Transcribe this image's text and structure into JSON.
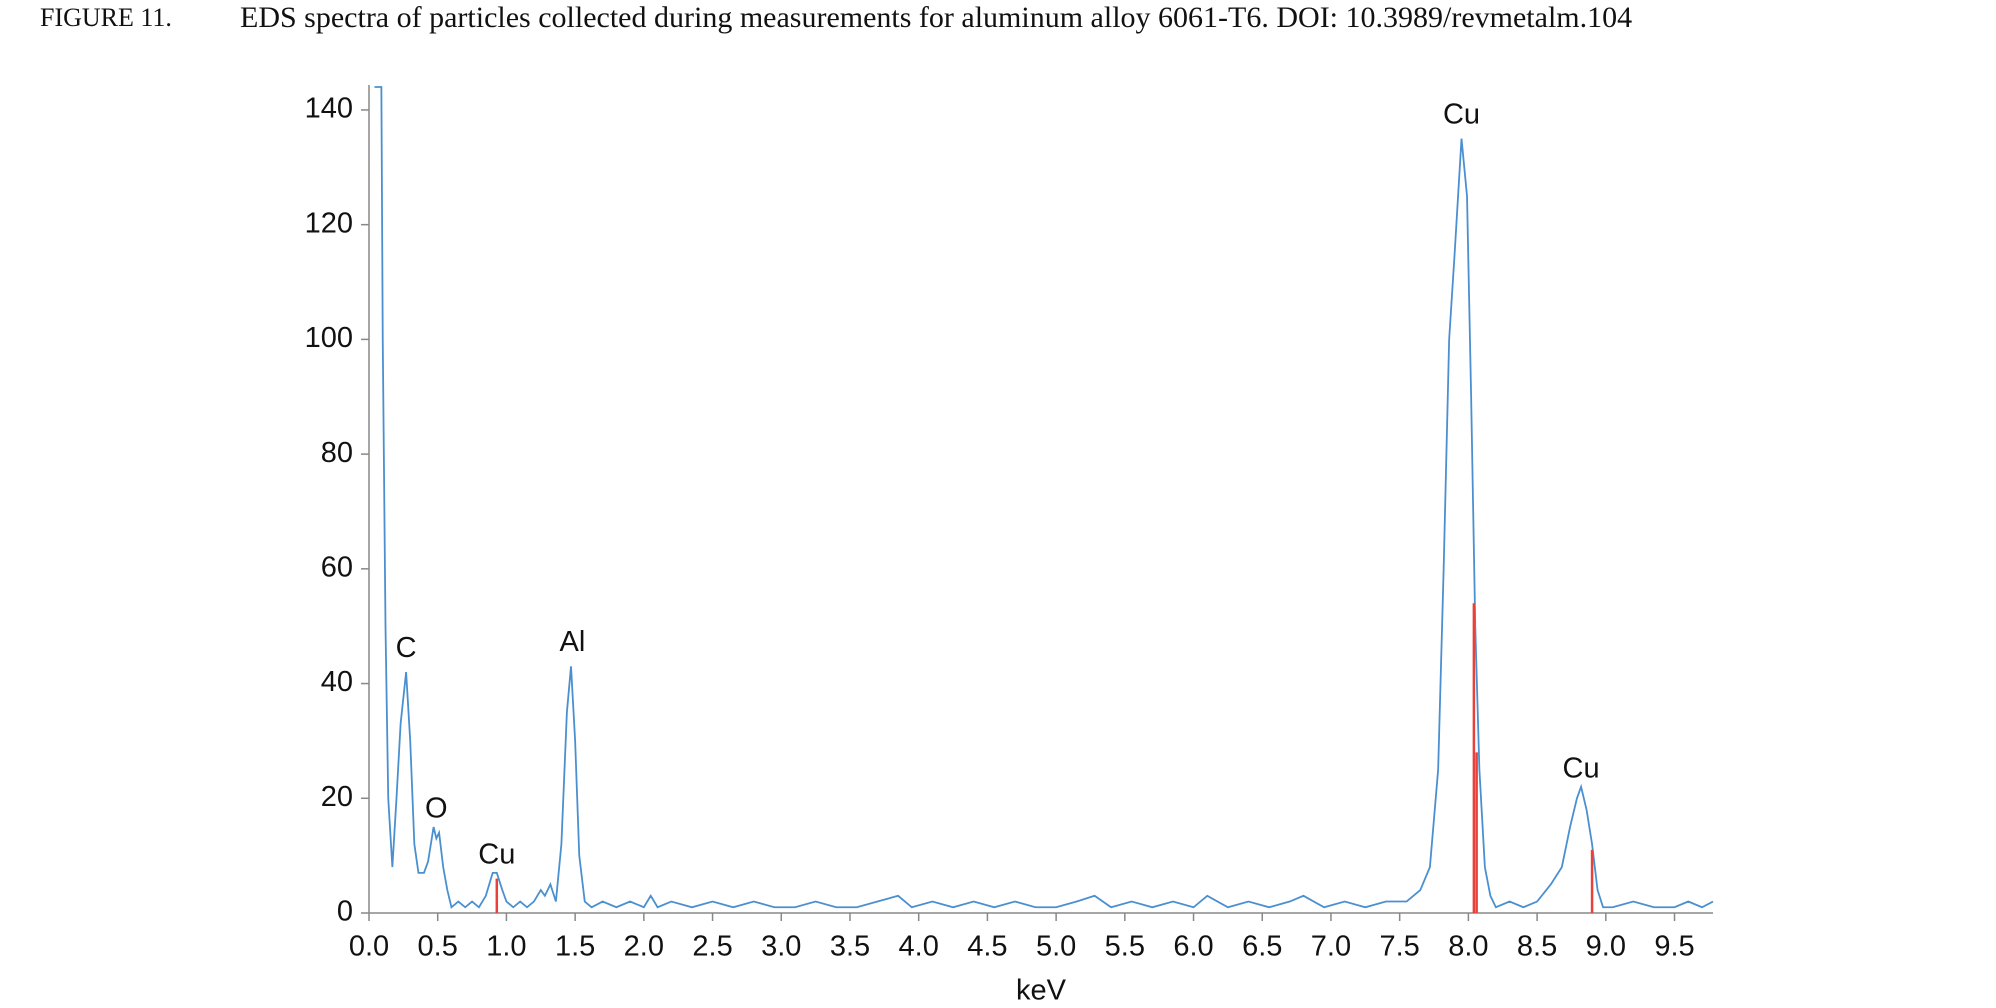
{
  "chart_data": {
    "type": "line",
    "figure_label": "FIGURE 11.",
    "title": "EDS spectra of particles collected during measurements for aluminum alloy 6061-T6. DOI: 10.3989/revmetalm.104",
    "xlabel": "keV",
    "xlim": [
      0,
      9.78
    ],
    "ylim": [
      0,
      144
    ],
    "xticks": [
      {
        "value": 0,
        "label": "0.0"
      },
      0.5,
      {
        "value": 1,
        "label": "1.0"
      },
      1.5,
      {
        "value": 2,
        "label": "2.0"
      },
      2.5,
      {
        "value": 3,
        "label": "3.0"
      },
      3.5,
      {
        "value": 4,
        "label": "4.0"
      },
      4.5,
      {
        "value": 5,
        "label": "5.0"
      },
      5.5,
      {
        "value": 6,
        "label": "6.0"
      },
      6.5,
      {
        "value": 7,
        "label": "7.0"
      },
      7.5,
      {
        "value": 8,
        "label": "8.0"
      },
      8.5,
      {
        "value": 9,
        "label": "9.0"
      },
      9.5
    ],
    "yticks": [
      0,
      20,
      40,
      60,
      80,
      100,
      120,
      140
    ],
    "grid": false,
    "series": [
      {
        "color": "#4a90d0",
        "x": [
          0.04,
          0.09,
          0.1,
          0.12,
          0.14,
          0.17,
          0.2,
          0.23,
          0.27,
          0.3,
          0.33,
          0.36,
          0.4,
          0.43,
          0.47,
          0.49,
          0.51,
          0.54,
          0.57,
          0.6,
          0.65,
          0.7,
          0.75,
          0.8,
          0.85,
          0.9,
          0.93,
          0.97,
          1.0,
          1.05,
          1.1,
          1.15,
          1.2,
          1.25,
          1.28,
          1.32,
          1.36,
          1.4,
          1.44,
          1.47,
          1.5,
          1.53,
          1.57,
          1.62,
          1.7,
          1.8,
          1.9,
          2.0,
          2.05,
          2.1,
          2.2,
          2.35,
          2.5,
          2.65,
          2.8,
          2.95,
          3.1,
          3.25,
          3.4,
          3.55,
          3.7,
          3.85,
          3.95,
          4.1,
          4.25,
          4.4,
          4.55,
          4.7,
          4.85,
          5.0,
          5.15,
          5.28,
          5.4,
          5.55,
          5.7,
          5.85,
          6.0,
          6.1,
          6.25,
          6.4,
          6.55,
          6.7,
          6.8,
          6.95,
          7.1,
          7.25,
          7.4,
          7.55,
          7.65,
          7.72,
          7.78,
          7.82,
          7.86,
          7.9,
          7.95,
          7.99,
          8.02,
          8.05,
          8.08,
          8.12,
          8.16,
          8.2,
          8.3,
          8.4,
          8.5,
          8.6,
          8.68,
          8.74,
          8.79,
          8.82,
          8.86,
          8.9,
          8.94,
          8.98,
          9.05,
          9.2,
          9.35,
          9.5,
          9.6,
          9.7,
          9.78
        ],
        "values": [
          144,
          144,
          100,
          50,
          20,
          8,
          20,
          33,
          42,
          30,
          12,
          7,
          7,
          9,
          15,
          13,
          14,
          8,
          4,
          1,
          2,
          1,
          2,
          1,
          3,
          7,
          7,
          4,
          2,
          1,
          2,
          1,
          2,
          4,
          3,
          5,
          2,
          12,
          35,
          43,
          30,
          10,
          2,
          1,
          2,
          1,
          2,
          1,
          3,
          1,
          2,
          1,
          2,
          1,
          2,
          1,
          1,
          2,
          1,
          1,
          2,
          3,
          1,
          2,
          1,
          2,
          1,
          2,
          1,
          1,
          2,
          3,
          1,
          2,
          1,
          2,
          1,
          3,
          1,
          2,
          1,
          2,
          3,
          1,
          2,
          1,
          2,
          2,
          4,
          8,
          25,
          60,
          100,
          115,
          135,
          125,
          90,
          50,
          25,
          8,
          3,
          1,
          2,
          1,
          2,
          5,
          8,
          15,
          20,
          22,
          18,
          12,
          4,
          1,
          1,
          2,
          1,
          1,
          2,
          1,
          2
        ]
      }
    ],
    "lines": {
      "color": "#e8403a",
      "x": [
        0.93,
        8.04,
        8.06,
        8.9
      ],
      "values": [
        6,
        54,
        28,
        11
      ]
    },
    "annotations": [
      {
        "text": "C",
        "x": 0.27,
        "y": 46
      },
      {
        "text": "O",
        "x": 0.49,
        "y": 18
      },
      {
        "text": "Cu",
        "x": 0.93,
        "y": 10
      },
      {
        "text": "Al",
        "x": 1.48,
        "y": 47
      },
      {
        "text": "Cu",
        "x": 7.95,
        "y": 139
      },
      {
        "text": "Cu",
        "x": 8.82,
        "y": 25
      }
    ]
  }
}
